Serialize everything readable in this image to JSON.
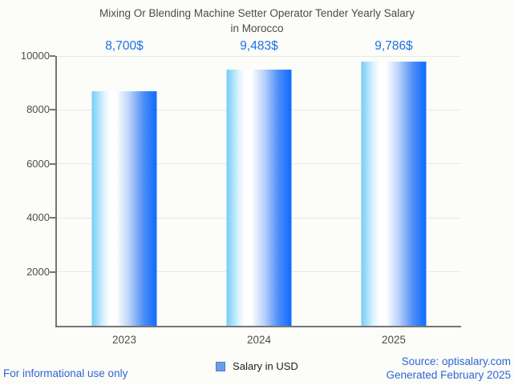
{
  "header": {
    "title_line1": "Mixing Or Blending Machine Setter Operator Tender Yearly Salary",
    "title_line2": "in Morocco"
  },
  "chart_data": {
    "type": "bar",
    "title": "Mixing Or Blending Machine Setter Operator Tender Yearly Salary in Morocco",
    "categories": [
      "2023",
      "2024",
      "2025"
    ],
    "series": [
      {
        "name": "Salary in USD",
        "values": [
          8700,
          9483,
          9786
        ],
        "value_labels": [
          "8,700$",
          "9,483$",
          "9,786$"
        ]
      }
    ],
    "xlabel": "",
    "ylabel": "",
    "ylim": [
      0,
      10000
    ],
    "yticks": [
      2000,
      4000,
      6000,
      8000,
      10000
    ],
    "grid": true,
    "legend_position": "bottom",
    "bar_orientation": "vertical"
  },
  "colors": {
    "value_label": "#1a73e8",
    "footer_link": "#2f66d3",
    "bar_gradient_left": "#74cdf8",
    "bar_gradient_middle": "#ffffff",
    "bar_gradient_right": "#0f6bfe",
    "legend_marker": "#6d9ce8",
    "title_text": "#4b4b4b",
    "axis_text": "#4d4d4d"
  },
  "legend": {
    "label": "Salary in USD"
  },
  "footer": {
    "disclaimer": "For informational use only",
    "source": "Source: optisalary.com",
    "generated": "Generated February 2025"
  }
}
